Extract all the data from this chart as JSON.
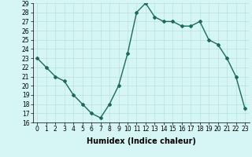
{
  "x": [
    0,
    1,
    2,
    3,
    4,
    5,
    6,
    7,
    8,
    9,
    10,
    11,
    12,
    13,
    14,
    15,
    16,
    17,
    18,
    19,
    20,
    21,
    22,
    23
  ],
  "y": [
    23,
    22,
    21,
    20.5,
    19,
    18,
    17,
    16.5,
    18,
    20,
    23.5,
    28,
    29,
    27.5,
    27,
    27,
    26.5,
    26.5,
    27,
    25,
    24.5,
    23,
    21,
    17.5
  ],
  "ylim": [
    16,
    29
  ],
  "yticks": [
    16,
    17,
    18,
    19,
    20,
    21,
    22,
    23,
    24,
    25,
    26,
    27,
    28,
    29
  ],
  "xticks": [
    0,
    1,
    2,
    3,
    4,
    5,
    6,
    7,
    8,
    9,
    10,
    11,
    12,
    13,
    14,
    15,
    16,
    17,
    18,
    19,
    20,
    21,
    22,
    23
  ],
  "xlabel": "Humidex (Indice chaleur)",
  "line_color": "#1a6b5a",
  "marker": "D",
  "marker_size": 2.0,
  "bg_color": "#d6f5f5",
  "grid_color": "#b8e0e0",
  "line_width": 1.0,
  "tick_fontsize": 5.5,
  "xlabel_fontsize": 7.0
}
